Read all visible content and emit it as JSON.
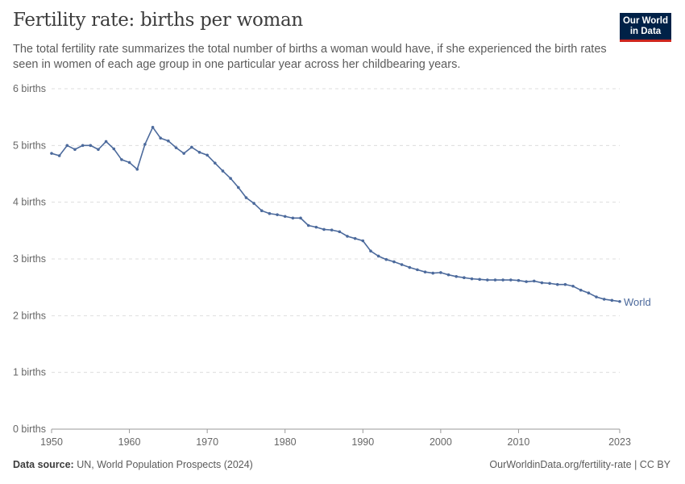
{
  "header": {
    "title": "Fertility rate: births per woman",
    "subtitle": "The total fertility rate summarizes the total number of births a woman would have, if she experienced the birth rates seen in women of each age group in one particular year across her childbearing years.",
    "logo": "Our World in Data"
  },
  "footer": {
    "source_label": "Data source:",
    "source": "UN, World Population Prospects (2024)",
    "link": "OurWorldinData.org/fertility-rate | CC BY"
  },
  "colors": {
    "series": "#4c6a9c",
    "grid": "#dddddd",
    "text": "#5b5b5b"
  },
  "chart_data": {
    "type": "line",
    "title": "Fertility rate: births per woman",
    "xlabel": "",
    "ylabel": "",
    "xlim": [
      1950,
      2023
    ],
    "ylim": [
      0,
      6
    ],
    "grid": true,
    "legend": "end-of-line label",
    "y_ticks": [
      "0 births",
      "1 births",
      "2 births",
      "3 births",
      "4 births",
      "5 births",
      "6 births"
    ],
    "x_ticks": [
      "1950",
      "1960",
      "1970",
      "1980",
      "1990",
      "2000",
      "2010",
      "2023"
    ],
    "series": [
      {
        "name": "World",
        "x_start": 1950,
        "values": [
          4.86,
          4.82,
          5.0,
          4.93,
          5.0,
          5.0,
          4.93,
          5.07,
          4.94,
          4.75,
          4.7,
          4.58,
          5.02,
          5.32,
          5.13,
          5.08,
          4.96,
          4.86,
          4.97,
          4.88,
          4.83,
          4.69,
          4.55,
          4.42,
          4.26,
          4.08,
          3.98,
          3.85,
          3.8,
          3.78,
          3.75,
          3.72,
          3.72,
          3.59,
          3.56,
          3.52,
          3.51,
          3.48,
          3.4,
          3.36,
          3.32,
          3.14,
          3.05,
          2.99,
          2.95,
          2.9,
          2.85,
          2.81,
          2.77,
          2.75,
          2.76,
          2.72,
          2.69,
          2.67,
          2.65,
          2.64,
          2.63,
          2.63,
          2.63,
          2.63,
          2.62,
          2.6,
          2.61,
          2.58,
          2.57,
          2.55,
          2.55,
          2.52,
          2.45,
          2.4,
          2.33,
          2.29,
          2.27,
          2.25
        ]
      }
    ]
  }
}
